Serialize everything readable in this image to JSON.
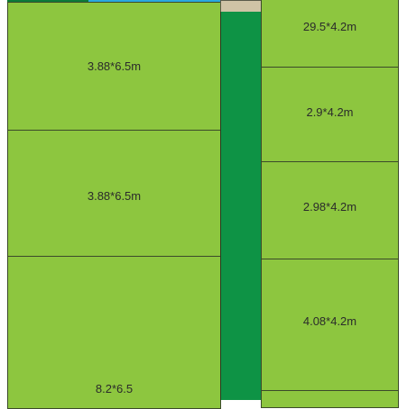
{
  "colors": {
    "plot_fill": "#8dc63f",
    "corridor": "#0e9345",
    "water": "#29a9e0",
    "entrance": "#cfc3a6",
    "border": "#3b4a2a"
  },
  "left_plots": [
    {
      "label": "3.88*6.5m"
    },
    {
      "label": "3.88*6.5m"
    },
    {
      "label": "8.2*6.5"
    }
  ],
  "right_plots": [
    {
      "label": "29.5*4.2m"
    },
    {
      "label": "2.9*4.2m"
    },
    {
      "label": "2.98*4.2m"
    },
    {
      "label": "4.08*4.2m"
    },
    {
      "label": ""
    }
  ]
}
